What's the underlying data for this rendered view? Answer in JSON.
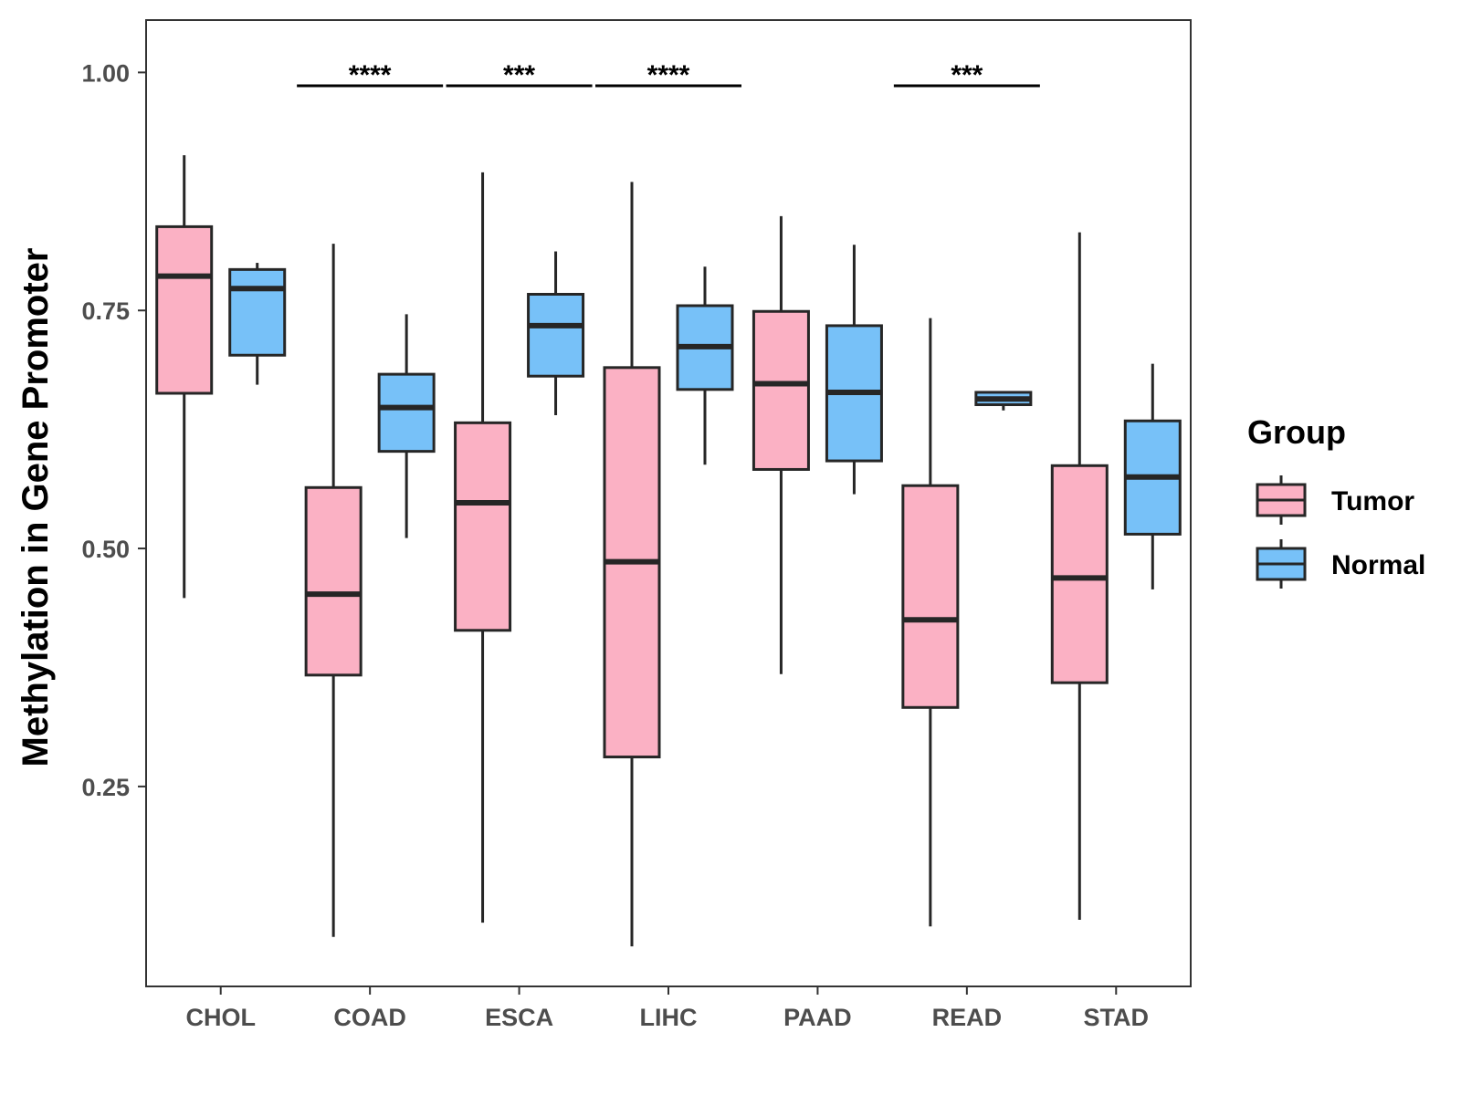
{
  "chart_data": {
    "type": "boxplot",
    "title": "",
    "xlabel": "",
    "ylabel": "Methylation in Gene Promoter",
    "ylim": [
      0.04,
      1.055
    ],
    "yticks": [
      0.25,
      0.5,
      0.75,
      1.0
    ],
    "ytick_labels": [
      "0.25",
      "0.50",
      "0.75",
      "1.00"
    ],
    "categories": [
      "CHOL",
      "COAD",
      "ESCA",
      "LIHC",
      "PAAD",
      "READ",
      "STAD"
    ],
    "legend": {
      "title": "Group",
      "position": "right",
      "entries": [
        {
          "name": "Tumor",
          "color": "#fbb1c4"
        },
        {
          "name": "Normal",
          "color": "#77c1f8"
        }
      ]
    },
    "series": [
      {
        "name": "Tumor",
        "color": "#fbb1c4",
        "boxes": [
          {
            "category": "CHOL",
            "min": 0.448,
            "q1": 0.663,
            "median": 0.786,
            "q3": 0.838,
            "max": 0.913
          },
          {
            "category": "COAD",
            "min": 0.092,
            "q1": 0.367,
            "median": 0.452,
            "q3": 0.564,
            "max": 0.82
          },
          {
            "category": "ESCA",
            "min": 0.107,
            "q1": 0.414,
            "median": 0.548,
            "q3": 0.632,
            "max": 0.895
          },
          {
            "category": "LIHC",
            "min": 0.082,
            "q1": 0.281,
            "median": 0.486,
            "q3": 0.69,
            "max": 0.885
          },
          {
            "category": "PAAD",
            "min": 0.368,
            "q1": 0.583,
            "median": 0.673,
            "q3": 0.749,
            "max": 0.849
          },
          {
            "category": "READ",
            "min": 0.103,
            "q1": 0.333,
            "median": 0.425,
            "q3": 0.566,
            "max": 0.742
          },
          {
            "category": "STAD",
            "min": 0.11,
            "q1": 0.359,
            "median": 0.469,
            "q3": 0.587,
            "max": 0.832
          }
        ]
      },
      {
        "name": "Normal",
        "color": "#77c1f8",
        "boxes": [
          {
            "category": "CHOL",
            "min": 0.672,
            "q1": 0.703,
            "median": 0.773,
            "q3": 0.793,
            "max": 0.8
          },
          {
            "category": "COAD",
            "min": 0.511,
            "q1": 0.602,
            "median": 0.648,
            "q3": 0.683,
            "max": 0.746
          },
          {
            "category": "ESCA",
            "min": 0.64,
            "q1": 0.681,
            "median": 0.734,
            "q3": 0.767,
            "max": 0.812
          },
          {
            "category": "LIHC",
            "min": 0.588,
            "q1": 0.667,
            "median": 0.712,
            "q3": 0.755,
            "max": 0.796
          },
          {
            "category": "PAAD",
            "min": 0.557,
            "q1": 0.592,
            "median": 0.664,
            "q3": 0.734,
            "max": 0.819
          },
          {
            "category": "READ",
            "min": 0.645,
            "q1": 0.651,
            "median": 0.657,
            "q3": 0.664,
            "max": 0.665
          },
          {
            "category": "STAD",
            "min": 0.457,
            "q1": 0.515,
            "median": 0.575,
            "q3": 0.634,
            "max": 0.694
          }
        ]
      }
    ],
    "annotations": [
      {
        "category": "COAD",
        "label": "****",
        "y": 0.986
      },
      {
        "category": "ESCA",
        "label": "***",
        "y": 0.986
      },
      {
        "category": "LIHC",
        "label": "****",
        "y": 0.986
      },
      {
        "category": "READ",
        "label": "***",
        "y": 0.986
      }
    ],
    "colors": {
      "tumor": "#fbb1c4",
      "normal": "#77c1f8",
      "stroke": "#262626",
      "panel_border": "#333333"
    }
  }
}
